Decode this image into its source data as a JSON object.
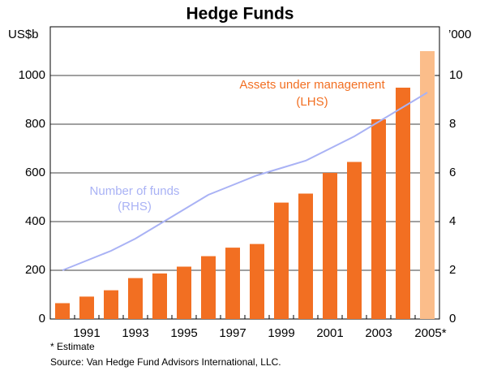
{
  "chart_data": {
    "type": "bar_line",
    "title": "Hedge Funds",
    "y_unit": "US$b",
    "y2_unit": "’000",
    "categories": [
      null,
      "1991",
      null,
      "1993",
      null,
      "1995",
      null,
      "1997",
      null,
      "1999",
      null,
      "2001",
      null,
      "2003",
      null,
      "2005*"
    ],
    "series": [
      {
        "name": "Assets under management",
        "axis_note": "(LHS)",
        "type": "bar",
        "color": "#f26f22",
        "colors": [
          "#f26f22",
          "#f26f22",
          "#f26f22",
          "#f26f22",
          "#f26f22",
          "#f26f22",
          "#f26f22",
          "#f26f22",
          "#f26f22",
          "#f26f22",
          "#f26f22",
          "#f26f22",
          "#f26f22",
          "#f26f22",
          "#f26f22",
          "#fbbd8a"
        ],
        "values": [
          65,
          92,
          118,
          168,
          187,
          215,
          258,
          293,
          308,
          478,
          515,
          600,
          645,
          820,
          950,
          1100
        ]
      },
      {
        "name": "Number of funds",
        "axis_note": "(RHS)",
        "type": "line",
        "axis": "y2",
        "color": "#a9b2f5",
        "values": [
          2.0,
          2.4,
          2.8,
          3.3,
          3.9,
          4.5,
          5.1,
          5.5,
          5.9,
          6.2,
          6.5,
          7.0,
          7.5,
          8.1,
          8.7,
          9.3
        ]
      }
    ],
    "ylim": [
      0,
      1200
    ],
    "yticks": [
      0,
      200,
      400,
      600,
      800,
      1000
    ],
    "y2lim": [
      0,
      12
    ],
    "y2ticks": [
      0,
      2,
      4,
      6,
      8,
      10
    ],
    "grid": true,
    "footnotes": [
      "*   Estimate",
      "Source: Van Hedge Fund Advisors International, LLC."
    ]
  }
}
